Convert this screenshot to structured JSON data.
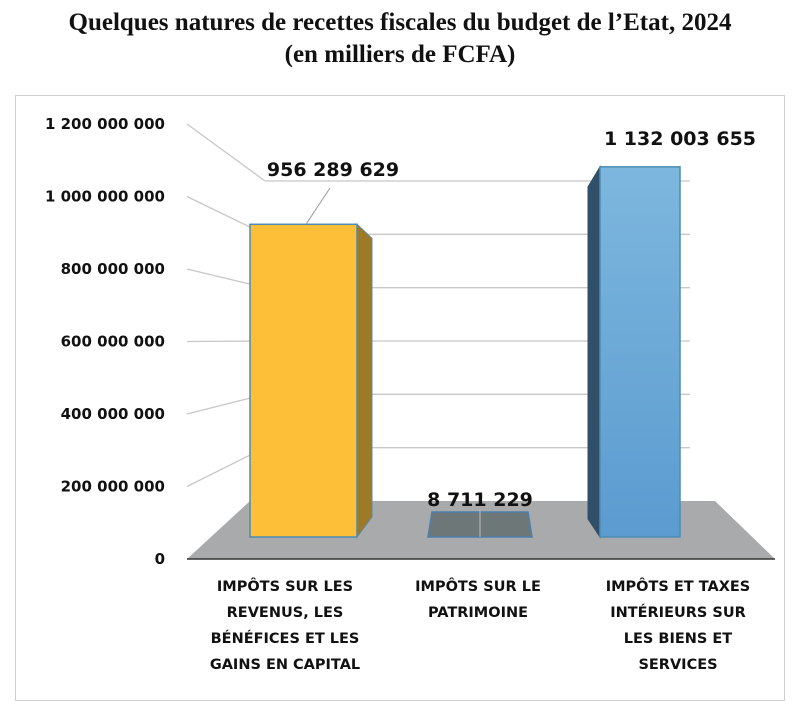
{
  "chart_data": {
    "type": "bar",
    "title": "Quelques natures de recettes fiscales du budget de l’Etat, 2024",
    "subtitle": "(en milliers de FCFA)",
    "xlabel": "",
    "ylabel": "",
    "ylim": [
      0,
      1200000000
    ],
    "yticks": [
      0,
      200000000,
      400000000,
      600000000,
      800000000,
      1000000000,
      1200000000
    ],
    "ytick_labels": [
      "0",
      "200 000 000",
      "400 000 000",
      "600 000 000",
      "800 000 000",
      "1 000 000 000",
      "1 200 000 000"
    ],
    "grid": true,
    "categories": [
      [
        "IMPÔTS SUR LES",
        "REVENUS, LES",
        "BÉNÉFICES ET LES",
        "GAINS EN CAPITAL"
      ],
      [
        "IMPÔTS SUR LE",
        "PATRIMOINE"
      ],
      [
        "IMPÔTS ET TAXES",
        "INTÉRIEURS SUR",
        "LES BIENS ET",
        "SERVICES"
      ]
    ],
    "values": [
      956289629,
      8711229,
      1132003655
    ],
    "data_labels": [
      "956 289 629",
      "8 711 229",
      "1 132 003 655"
    ],
    "colors": [
      "#FDBE38",
      "#6E7777",
      "#6FA8D8"
    ]
  }
}
